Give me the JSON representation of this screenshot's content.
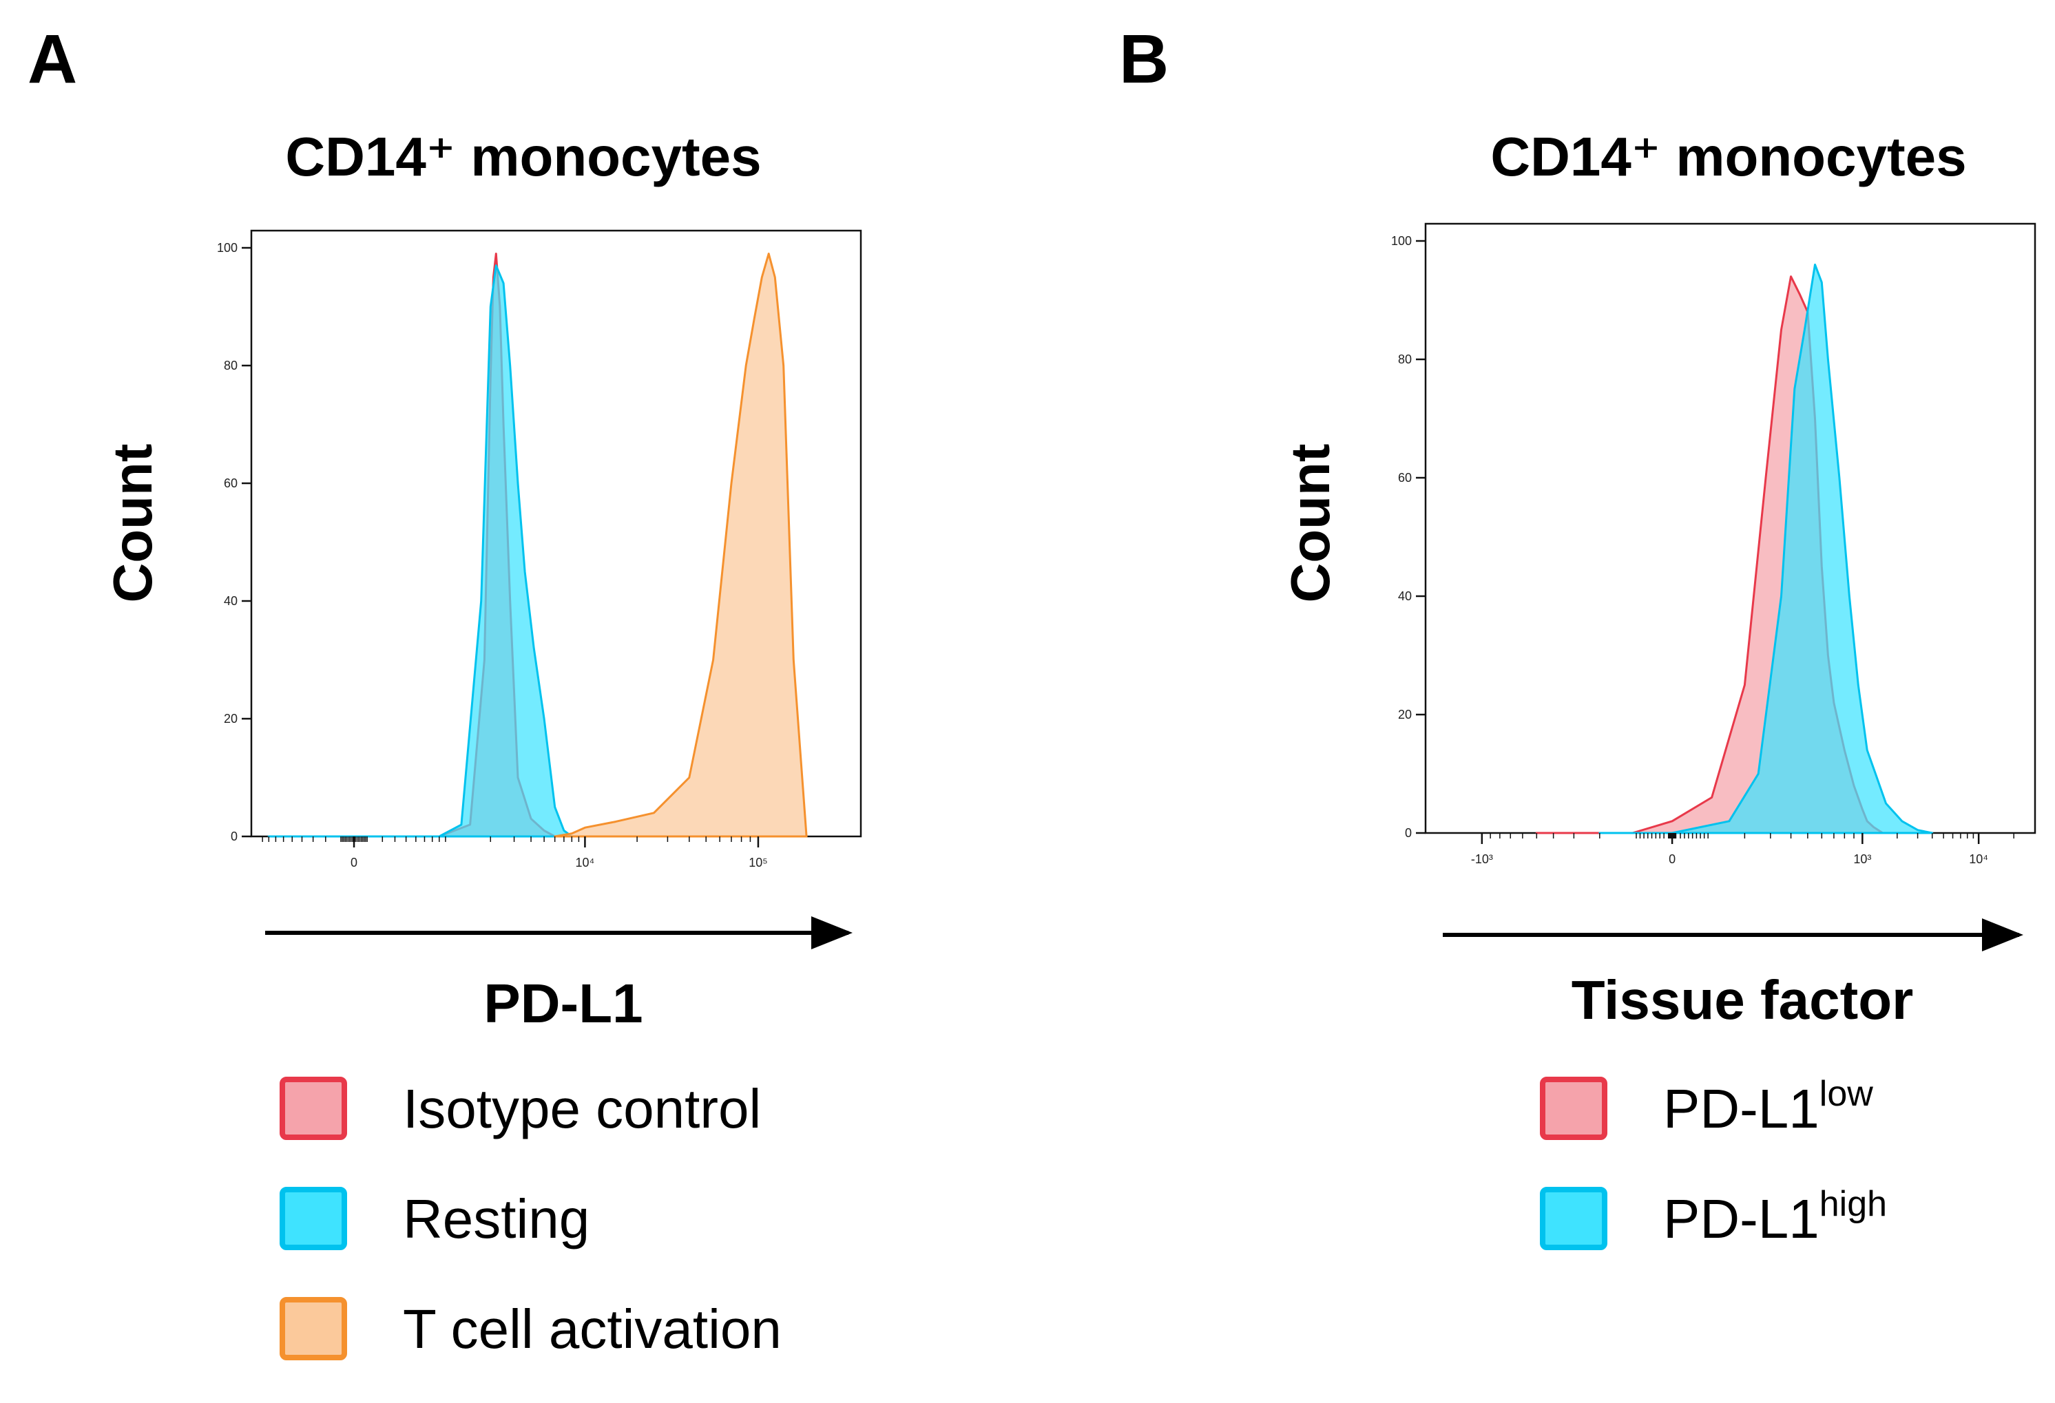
{
  "chart_data": [
    {
      "panel": "A",
      "type": "area",
      "title": "CD14⁺ monocytes",
      "xlabel": "PD-L1",
      "ylabel": "Count",
      "x_scale": "biexponential",
      "ylim": [
        0,
        100
      ],
      "y_ticks": [
        "0",
        "20",
        "40",
        "60",
        "80",
        "100"
      ],
      "x_ticks": [
        {
          "value": 0,
          "label": "0"
        },
        {
          "value": 10000,
          "label": "10⁴"
        },
        {
          "value": 100000,
          "label": "10⁵"
        }
      ],
      "grid": false,
      "legend_position": "bottom",
      "series": [
        {
          "name": "Isotype control",
          "fill": "#f5a3ab",
          "stroke": "#e8394a",
          "x": [
            -800,
            0,
            800,
            1400,
            1800,
            2000,
            2100,
            2200,
            2350,
            2500,
            2800,
            3200,
            4000,
            5000,
            6000
          ],
          "y": [
            0,
            0,
            0,
            2,
            30,
            78,
            95,
            99,
            90,
            70,
            40,
            10,
            3,
            1,
            0
          ]
        },
        {
          "name": "Resting",
          "fill": "#3fe3ff",
          "stroke": "#00c2ee",
          "x": [
            -800,
            0,
            800,
            1200,
            1700,
            2000,
            2200,
            2500,
            2800,
            3200,
            3600,
            4200,
            5000,
            6000,
            7000,
            8000
          ],
          "y": [
            0,
            0,
            0,
            2,
            40,
            90,
            97,
            94,
            80,
            60,
            45,
            32,
            20,
            5,
            1,
            0
          ]
        },
        {
          "name": "T cell activation",
          "fill": "#fbc99b",
          "stroke": "#f5912e",
          "x": [
            6000,
            8000,
            10000,
            15000,
            25000,
            40000,
            55000,
            70000,
            85000,
            95000,
            105000,
            115000,
            125000,
            140000,
            160000,
            190000
          ],
          "y": [
            0,
            0.5,
            1.5,
            2.5,
            4,
            10,
            30,
            60,
            80,
            88,
            95,
            99,
            95,
            80,
            30,
            0
          ]
        }
      ]
    },
    {
      "panel": "B",
      "type": "area",
      "title": "CD14⁺ monocytes",
      "xlabel": "Tissue factor",
      "ylabel": "Count",
      "x_scale": "biexponential",
      "ylim": [
        0,
        100
      ],
      "y_ticks": [
        "0",
        "20",
        "40",
        "60",
        "80",
        "100"
      ],
      "x_ticks": [
        {
          "value": -1000,
          "label": "-10³"
        },
        {
          "value": 0,
          "label": "0"
        },
        {
          "value": 1000,
          "label": "10³"
        },
        {
          "value": 10000,
          "label": "10⁴"
        }
      ],
      "grid": false,
      "legend_position": "bottom",
      "series": [
        {
          "name": "PD-L1low",
          "fill": "#f5a3ab",
          "stroke": "#e8394a",
          "x": [
            -500,
            -100,
            0,
            100,
            200,
            280,
            350,
            400,
            450,
            500,
            550,
            600,
            650,
            700,
            800,
            900,
            1000,
            1100,
            1250,
            1500
          ],
          "y": [
            0,
            0,
            2,
            6,
            25,
            60,
            85,
            94,
            91,
            88,
            70,
            45,
            30,
            22,
            14,
            8,
            4,
            2,
            1,
            0
          ]
        },
        {
          "name": "PD-L1high",
          "fill": "#3fe3ff",
          "stroke": "#00c2ee",
          "x": [
            -200,
            0,
            150,
            250,
            350,
            420,
            480,
            550,
            600,
            650,
            750,
            850,
            950,
            1100,
            1300,
            1600,
            2200,
            3000,
            4000
          ],
          "y": [
            0,
            0,
            2,
            10,
            40,
            75,
            85,
            96,
            93,
            80,
            60,
            40,
            25,
            14,
            10,
            5,
            2,
            0.5,
            0
          ]
        }
      ]
    }
  ],
  "panels": [
    {
      "letter": "A",
      "legend": [
        {
          "label": "Isotype control",
          "sup": ""
        },
        {
          "label": "Resting",
          "sup": ""
        },
        {
          "label": "T cell activation",
          "sup": ""
        }
      ]
    },
    {
      "letter": "B",
      "legend": [
        {
          "label": "PD-L1",
          "sup": "low"
        },
        {
          "label": "PD-L1",
          "sup": "high"
        }
      ]
    }
  ]
}
